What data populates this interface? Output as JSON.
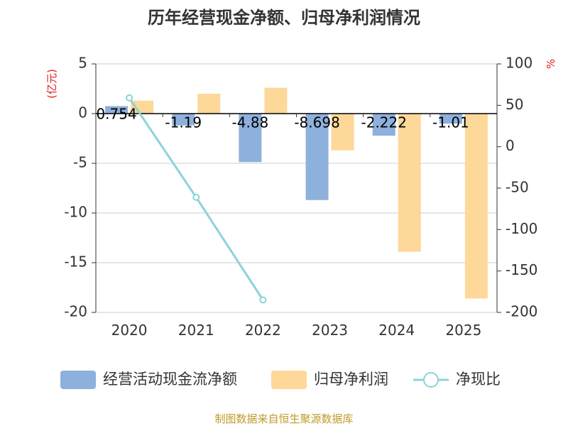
{
  "title": "历年经营现金净额、归母净利润情况",
  "left_unit": "(亿元)",
  "right_unit": "%",
  "source": "制图数据来自恒生聚源数据库",
  "colors": {
    "cash": "#8eb0dc",
    "profit": "#fdd899",
    "ratio": "#8dd3d8",
    "axis": "#333333",
    "grid": "#cccccc",
    "unit": "#e0201b",
    "source": "#c09a2a"
  },
  "chart_data": {
    "type": "bar",
    "title": "历年经营现金净额、归母净利润情况",
    "categories": [
      "2020",
      "2021",
      "2022",
      "2023",
      "2024",
      "2025"
    ],
    "series": [
      {
        "name": "经营活动现金流净额",
        "axis": "left",
        "values": [
          0.754,
          -1.19,
          -4.88,
          -8.698,
          -2.222,
          -1.01
        ],
        "labels": [
          "0.754",
          "-1.19",
          "-4.88",
          "-8.698",
          "-2.222",
          "-1.01"
        ]
      },
      {
        "name": "归母净利润",
        "axis": "left",
        "values": [
          1.3,
          2.0,
          2.6,
          -3.7,
          -13.9,
          -18.6
        ]
      },
      {
        "name": "净现比",
        "axis": "right",
        "type": "line",
        "values": [
          59,
          -61,
          -185,
          null,
          null,
          null
        ]
      }
    ],
    "left_axis": {
      "label": "(亿元)",
      "ylim": [
        -20,
        5
      ],
      "ticks": [
        5,
        0,
        -5,
        -10,
        -15,
        -20
      ]
    },
    "right_axis": {
      "label": "%",
      "ylim": [
        -200,
        100
      ],
      "ticks": [
        100,
        50,
        0,
        -50,
        -100,
        -150,
        -200
      ]
    },
    "legend": [
      "经营活动现金流净额",
      "归母净利润",
      "净现比"
    ],
    "legend_position": "bottom"
  }
}
